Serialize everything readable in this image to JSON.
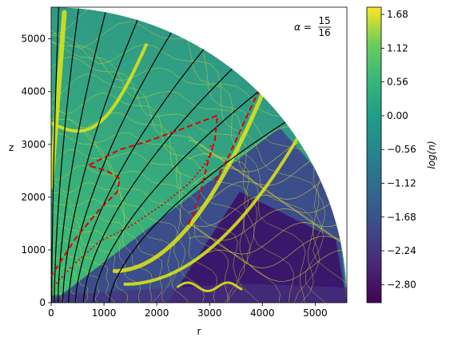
{
  "chart_data": {
    "type": "heatmap",
    "xlabel": "r",
    "ylabel": "z",
    "annotation": "α = 15/16",
    "annotation_parts": {
      "symbol": "α =",
      "numerator": "15",
      "denominator": "16"
    },
    "xlim": [
      0,
      5600
    ],
    "ylim": [
      0,
      5600
    ],
    "x_ticks": [
      0,
      1000,
      2000,
      3000,
      4000,
      5000
    ],
    "y_ticks": [
      0,
      1000,
      2000,
      3000,
      4000,
      5000
    ],
    "domain_radius": 5600,
    "colorbar": {
      "label": "log(n)",
      "range": [
        -3.1,
        1.8
      ],
      "ticks": [
        "1.68",
        "1.12",
        "0.56",
        "0.00",
        "−0.56",
        "−1.12",
        "−1.68",
        "−2.24",
        "−2.80"
      ],
      "tick_values": [
        1.68,
        1.12,
        0.56,
        0.0,
        -0.56,
        -1.12,
        -1.68,
        -2.24,
        -2.8
      ],
      "colormap": "viridis"
    },
    "colors": {
      "field_lines": "#000000",
      "contours": "#e6e62a",
      "dashed_curve": "#dd0000",
      "dotted_curve": "#dd0000"
    },
    "field_lines": [
      {
        "footpoint_r": 10
      },
      {
        "footpoint_r": 60
      },
      {
        "footpoint_r": 130
      },
      {
        "footpoint_r": 220
      },
      {
        "footpoint_r": 330
      },
      {
        "footpoint_r": 460
      },
      {
        "footpoint_r": 610
      },
      {
        "footpoint_r": 800
      },
      {
        "footpoint_r": 1100
      }
    ],
    "dashed_curve": {
      "points": [
        [
          2600,
          1480
        ],
        [
          2700,
          1700
        ],
        [
          2820,
          2050
        ],
        [
          2950,
          2600
        ],
        [
          3100,
          3080
        ],
        [
          3150,
          3550
        ],
        [
          2500,
          3300
        ],
        [
          1800,
          3050
        ],
        [
          1300,
          2900
        ],
        [
          900,
          2700
        ],
        [
          700,
          2600
        ],
        [
          1050,
          2500
        ],
        [
          1300,
          2350
        ],
        [
          1250,
          2100
        ],
        [
          900,
          1750
        ],
        [
          450,
          1200
        ],
        [
          0,
          500
        ]
      ]
    },
    "dashed_curve_2": {
      "points": [
        [
          3100,
          2300
        ],
        [
          3350,
          2750
        ],
        [
          3600,
          3300
        ],
        [
          3900,
          3950
        ],
        [
          3950,
          4000
        ]
      ]
    },
    "dotted_curve": {
      "points": [
        [
          0,
          250
        ],
        [
          400,
          700
        ],
        [
          900,
          1150
        ],
        [
          1500,
          1450
        ],
        [
          2100,
          1850
        ],
        [
          2600,
          2250
        ],
        [
          2900,
          2600
        ],
        [
          3050,
          2900
        ],
        [
          3000,
          3000
        ]
      ]
    },
    "dense_bands": [
      {
        "name": "upper-jet-band"
      },
      {
        "name": "lower-jet-band"
      },
      {
        "name": "disk-band"
      }
    ]
  }
}
